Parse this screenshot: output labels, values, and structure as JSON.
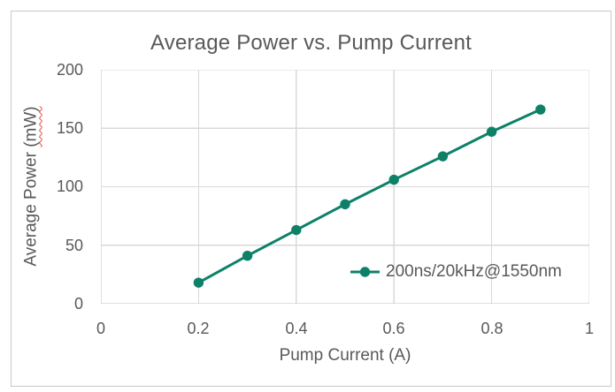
{
  "chart_data": {
    "type": "line",
    "title": "Average Power vs. Pump Current",
    "xlabel": "Pump Current (A)",
    "ylabel": "Average Power (mW)",
    "ylabel_parts": {
      "before": "Average Power ",
      "spellcheck_underlined": "(mW)"
    },
    "xlim": [
      0,
      1
    ],
    "ylim": [
      0,
      200
    ],
    "x_ticks": [
      0,
      0.2,
      0.4,
      0.6,
      0.8,
      1
    ],
    "x_tick_labels": [
      "0",
      "0.2",
      "0.4",
      "0.6",
      "0.8",
      "1"
    ],
    "y_ticks": [
      0,
      50,
      100,
      150,
      200
    ],
    "y_tick_labels": [
      "0",
      "50",
      "100",
      "150",
      "200"
    ],
    "grid": true,
    "legend": {
      "position": "inside-bottom-right",
      "entries": [
        "200ns/20kHz@1550nm"
      ]
    },
    "series": [
      {
        "name": "200ns/20kHz@1550nm",
        "marker": "circle",
        "color": "#0d8168",
        "x": [
          0.2,
          0.3,
          0.4,
          0.5,
          0.6,
          0.7,
          0.8,
          0.9
        ],
        "y": [
          18,
          41,
          63,
          85,
          106,
          126,
          147,
          166
        ]
      }
    ],
    "colors": {
      "text": "#595959",
      "gridline": "#d9d9d9",
      "axis_line": "#bfbfbf",
      "frame_border": "#c9c9c9",
      "background": "#ffffff",
      "spellcheck_squiggle": "#e04a3f"
    }
  }
}
